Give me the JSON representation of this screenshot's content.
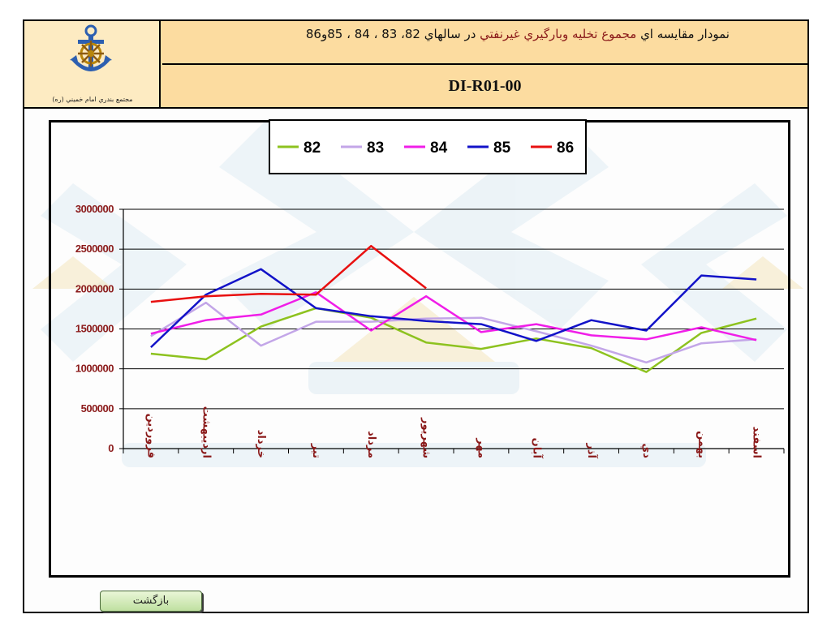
{
  "header": {
    "title_part1": "نمودار مقايسه اي ",
    "title_part2": "مجموع تخليه وبارگيري غيرنفتي",
    "title_part3": " در سالهاي 82، 83 ، 84 ، 85و86",
    "doc_code": "DI-R01-00",
    "org_name": "مجتمع بندري امام خميني (ره)"
  },
  "back_button": {
    "label": "بازگشت"
  },
  "colors": {
    "header_bg": "#fcdca0",
    "logo_bg": "#fdebc2",
    "axis_label": "#8b1a1a"
  },
  "chart_data": {
    "type": "line",
    "categories": [
      "فروردين",
      "ارديبهشت",
      "خرداد",
      "تير",
      "مرداد",
      "شهريور",
      "مهر",
      "آبان",
      "آذر",
      "دي",
      "بهمن",
      "اسفند"
    ],
    "category_labels": [
      "فروردين",
      "ارديبهشت",
      "خرداد",
      "تير",
      "مرداد",
      "شهريور",
      "مهر",
      "آبان",
      "آذر",
      "دي",
      "بهمن",
      "اسفند"
    ],
    "ylim": [
      0,
      3000000
    ],
    "yticks": [
      0,
      500000,
      1000000,
      1500000,
      2000000,
      2500000,
      3000000
    ],
    "ytick_labels": [
      "0",
      "500000",
      "1000000",
      "1500000",
      "2000000",
      "2500000",
      "3000000"
    ],
    "grid": true,
    "legend_position": "top",
    "series": [
      {
        "name": "82",
        "color": "#8dc21f",
        "values": [
          1190000,
          1120000,
          1530000,
          1760000,
          1640000,
          1330000,
          1250000,
          1380000,
          1260000,
          960000,
          1450000,
          1630000
        ]
      },
      {
        "name": "83",
        "color": "#c3a6e8",
        "values": [
          1410000,
          1830000,
          1290000,
          1590000,
          1590000,
          1630000,
          1640000,
          1470000,
          1290000,
          1080000,
          1320000,
          1370000
        ]
      },
      {
        "name": "84",
        "color": "#f01ee8",
        "values": [
          1440000,
          1610000,
          1680000,
          1960000,
          1480000,
          1910000,
          1460000,
          1560000,
          1420000,
          1370000,
          1520000,
          1360000
        ]
      },
      {
        "name": "85",
        "color": "#1212c8",
        "values": [
          1270000,
          1930000,
          2250000,
          1760000,
          1660000,
          1600000,
          1560000,
          1350000,
          1610000,
          1480000,
          2170000,
          2120000
        ]
      },
      {
        "name": "86",
        "color": "#e81010",
        "values": [
          1840000,
          1910000,
          1940000,
          1930000,
          2540000,
          2010000,
          null,
          null,
          null,
          null,
          null,
          null
        ]
      }
    ]
  }
}
